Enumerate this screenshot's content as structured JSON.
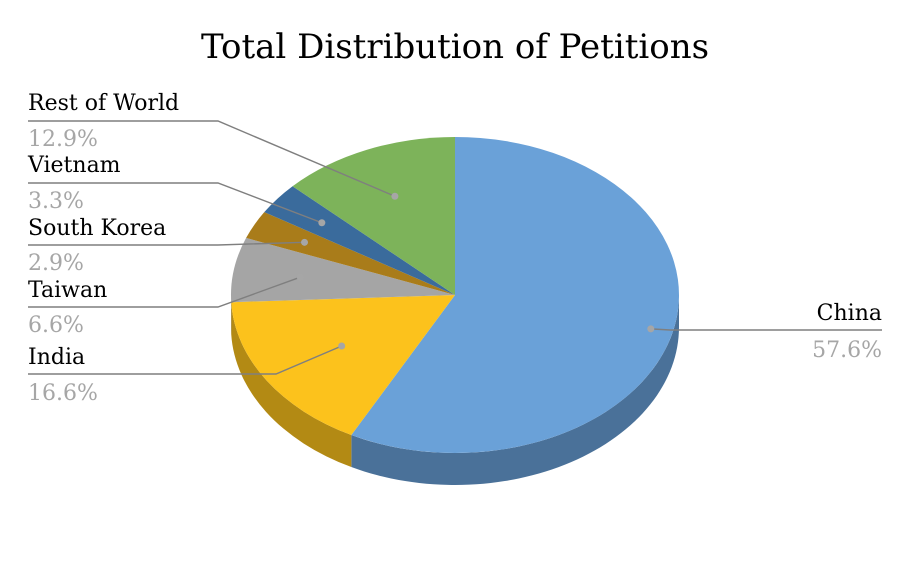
{
  "chart_data": {
    "type": "pie",
    "title": "Total Distribution of Petitions",
    "style": "3d",
    "slices": [
      {
        "label": "China",
        "value": 57.6,
        "value_label": "57.6%",
        "color": "#6aa1d8",
        "side_color": "#4a7199"
      },
      {
        "label": "India",
        "value": 16.6,
        "value_label": "16.6%",
        "color": "#fcc21c",
        "side_color": "#b38a14"
      },
      {
        "label": "Taiwan",
        "value": 6.6,
        "value_label": "6.6%",
        "color": "#a5a5a5",
        "side_color": "#757575"
      },
      {
        "label": "South Korea",
        "value": 2.9,
        "value_label": "2.9%",
        "color": "#a97c1a",
        "side_color": "#785812"
      },
      {
        "label": "Vietnam",
        "value": 3.3,
        "value_label": "3.3%",
        "color": "#3a6b9c",
        "side_color": "#284b6e"
      },
      {
        "label": "Rest of World",
        "value": 12.9,
        "value_label": "12.9%",
        "color": "#7db35a",
        "side_color": "#587f40"
      }
    ]
  }
}
